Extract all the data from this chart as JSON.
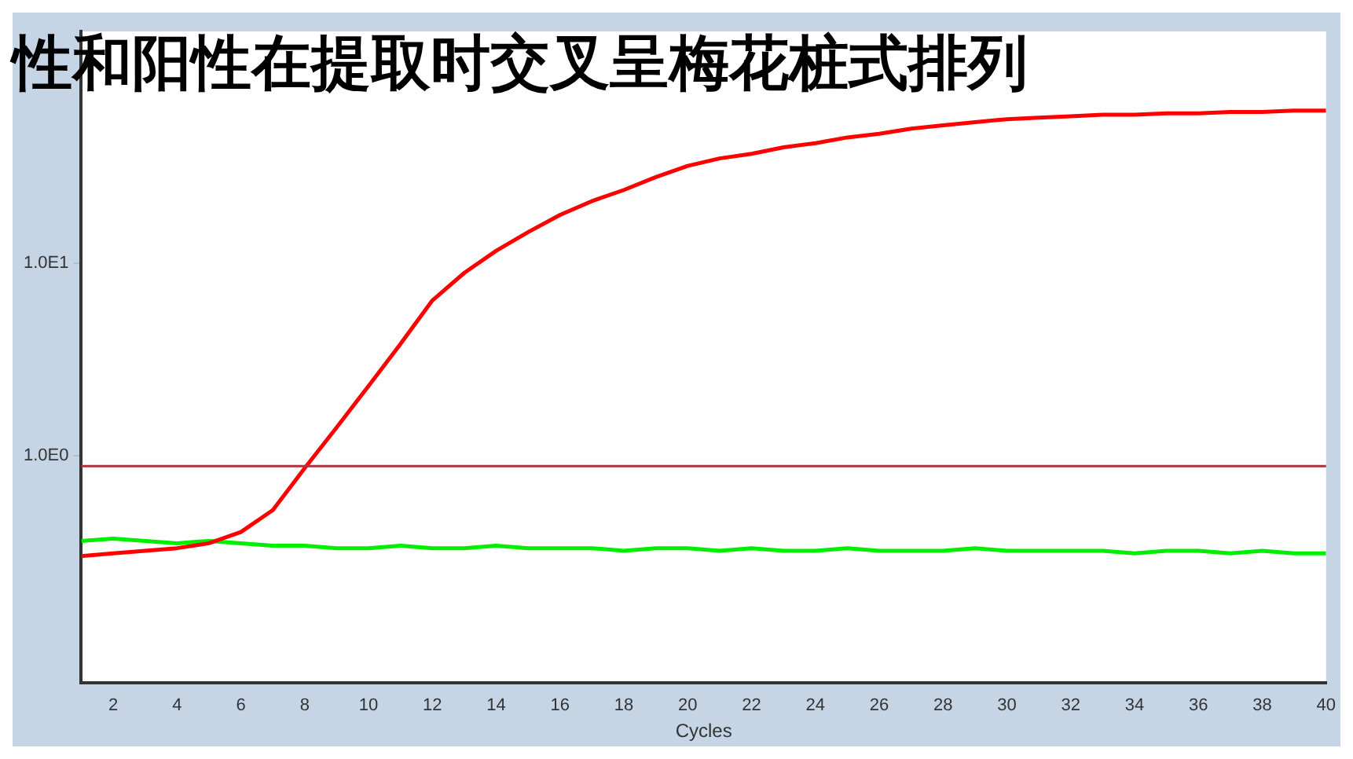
{
  "chart_data": {
    "type": "line",
    "title": "性和阳性在提取时交叉呈梅花桩式排列",
    "xlabel": "Cycles",
    "log": "y",
    "grid": false,
    "legend": false,
    "marker": "none",
    "line_style": "solid",
    "x": [
      1,
      2,
      3,
      4,
      5,
      6,
      7,
      8,
      9,
      10,
      11,
      12,
      13,
      14,
      15,
      16,
      17,
      18,
      19,
      20,
      21,
      22,
      23,
      24,
      25,
      26,
      27,
      28,
      29,
      30,
      31,
      32,
      33,
      34,
      35,
      36,
      37,
      38,
      39,
      40
    ],
    "xlim": [
      1,
      40
    ],
    "xticks": [
      2,
      4,
      6,
      8,
      10,
      12,
      14,
      16,
      18,
      20,
      22,
      24,
      26,
      28,
      30,
      32,
      34,
      36,
      38,
      40
    ],
    "ylim": [
      0.066,
      160
    ],
    "yticks": [
      {
        "value": 1,
        "label": "1.0E0"
      },
      {
        "value": 10,
        "label": "1.0E1"
      }
    ],
    "ref_lines": [
      {
        "axis": "y",
        "value": 0.88,
        "color": "#b03040"
      }
    ],
    "series": [
      {
        "color": "#ff0000",
        "values": [
          0.3,
          0.31,
          0.32,
          0.33,
          0.35,
          0.4,
          0.52,
          0.86,
          1.4,
          2.3,
          3.8,
          6.4,
          8.9,
          11.6,
          14.5,
          17.8,
          21,
          24,
          28,
          32,
          35,
          37,
          40,
          42,
          45,
          47,
          50,
          52,
          54,
          56,
          57,
          58,
          59,
          59,
          60,
          60,
          61,
          61,
          62,
          62
        ]
      },
      {
        "color": "#00ee00",
        "values": [
          0.36,
          0.37,
          0.36,
          0.35,
          0.36,
          0.35,
          0.34,
          0.34,
          0.33,
          0.33,
          0.34,
          0.33,
          0.33,
          0.34,
          0.33,
          0.33,
          0.33,
          0.32,
          0.33,
          0.33,
          0.32,
          0.33,
          0.32,
          0.32,
          0.33,
          0.32,
          0.32,
          0.32,
          0.33,
          0.32,
          0.32,
          0.32,
          0.32,
          0.31,
          0.32,
          0.32,
          0.31,
          0.32,
          0.31,
          0.31
        ]
      }
    ]
  }
}
